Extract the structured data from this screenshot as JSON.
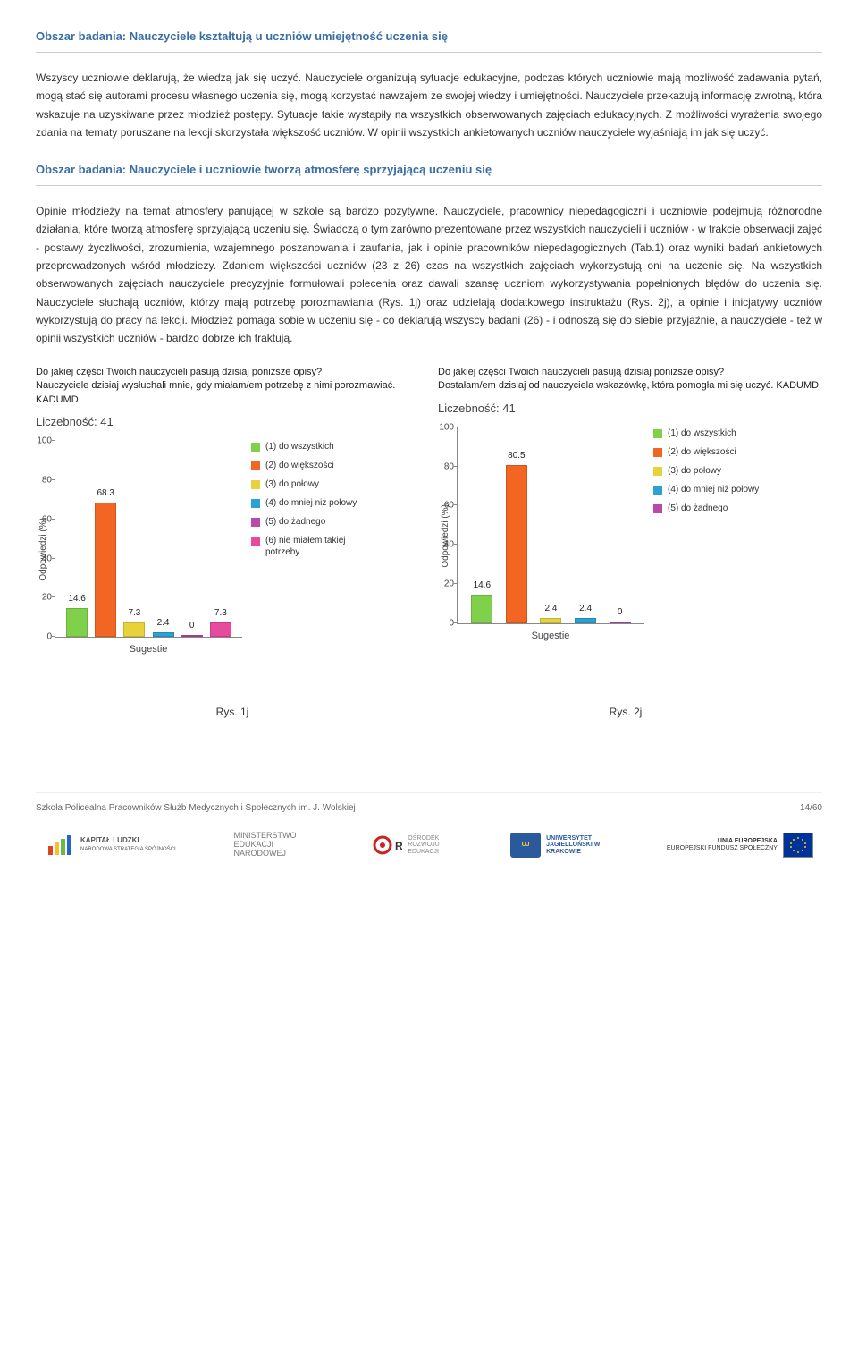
{
  "section1": {
    "heading": "Obszar badania: Nauczyciele kształtują u uczniów umiejętność uczenia się",
    "para": "Wszyscy uczniowie deklarują, że wiedzą jak się uczyć. Nauczyciele organizują sytuacje edukacyjne, podczas których uczniowie mają możliwość zadawania pytań, mogą stać się autorami procesu własnego uczenia się, mogą korzystać nawzajem ze swojej wiedzy i umiejętności. Nauczyciele przekazują informację zwrotną, która wskazuje na uzyskiwane przez młodzież postępy. Sytuacje takie wystąpiły na wszystkich obserwowanych zajęciach edukacyjnych. Z możliwości wyrażenia swojego zdania na tematy poruszane na lekcji skorzystała większość uczniów. W opinii wszystkich ankietowanych uczniów nauczyciele wyjaśniają im jak się uczyć."
  },
  "section2": {
    "heading": "Obszar badania: Nauczyciele i uczniowie tworzą atmosferę sprzyjającą uczeniu się",
    "para": "Opinie młodzieży na temat atmosfery panującej w szkole są bardzo pozytywne. Nauczyciele, pracownicy niepedagogiczni i uczniowie podejmują różnorodne działania, które tworzą atmosferę sprzyjającą uczeniu się. Świadczą o tym zarówno prezentowane przez wszystkich nauczycieli i uczniów - w trakcie obserwacji zajęć - postawy życzliwości, zrozumienia, wzajemnego poszanowania i zaufania, jak i opinie pracowników niepedagogicznych (Tab.1) oraz wyniki badań ankietowych przeprowadzonych wśród młodzieży. Zdaniem większości uczniów (23 z 26) czas na wszystkich zajęciach wykorzystują oni na uczenie się. Na wszystkich obserwowanych zajęciach nauczyciele precyzyjnie formułowali polecenia oraz dawali szansę uczniom wykorzystywania popełnionych błędów do uczenia się. Nauczyciele słuchają uczniów, którzy mają potrzebę porozmawiania (Rys. 1j) oraz udzielają dodatkowego instruktażu (Rys. 2j), a opinie i inicjatywy uczniów wykorzystują do pracy na lekcji. Młodzież pomaga sobie w uczeniu się - co deklarują wszyscy badani (26) - i odnoszą się do siebie przyjaźnie, a nauczyciele - też w opinii wszystkich uczniów - bardzo dobrze ich traktują."
  },
  "chart1": {
    "question": "Do jakiej części Twoich nauczycieli pasują dzisiaj poniższe opisy?\nNauczyciele dzisiaj wysłuchali mnie, gdy miałam/em potrzebę z nimi porozmawiać. KADUMD",
    "count_label": "Liczebność: 41",
    "type": "bar",
    "y_label": "Odpowiedzi (%)",
    "x_label": "Sugestie",
    "ylim": [
      0,
      100
    ],
    "ytick_step": 20,
    "values": [
      14.6,
      68.3,
      7.3,
      2.4,
      0,
      7.3
    ],
    "bar_colors": [
      "#7fd04a",
      "#f26522",
      "#e8d23a",
      "#2aa2d6",
      "#b84aa8",
      "#e84a9e"
    ],
    "legend": [
      {
        "label": "(1) do wszystkich",
        "color": "#7fd04a"
      },
      {
        "label": "(2) do większości",
        "color": "#f26522"
      },
      {
        "label": "(3) do połowy",
        "color": "#e8d23a"
      },
      {
        "label": "(4) do mniej niż połowy",
        "color": "#2aa2d6"
      },
      {
        "label": "(5) do żadnego",
        "color": "#b84aa8"
      },
      {
        "label": "(6) nie miałem takiej potrzeby",
        "color": "#e84a9e"
      }
    ],
    "caption": "Rys. 1j"
  },
  "chart2": {
    "question": "Do jakiej części Twoich nauczycieli pasują dzisiaj poniższe opisy?\nDostałam/em dzisiaj od nauczyciela wskazówkę, która pomogła mi się uczyć. KADUMD",
    "count_label": "Liczebność: 41",
    "type": "bar",
    "y_label": "Odpowiedzi (%)",
    "x_label": "Sugestie",
    "ylim": [
      0,
      100
    ],
    "ytick_step": 20,
    "values": [
      14.6,
      80.5,
      2.4,
      2.4,
      0
    ],
    "bar_colors": [
      "#7fd04a",
      "#f26522",
      "#e8d23a",
      "#2aa2d6",
      "#b84aa8"
    ],
    "legend": [
      {
        "label": "(1) do wszystkich",
        "color": "#7fd04a"
      },
      {
        "label": "(2) do większości",
        "color": "#f26522"
      },
      {
        "label": "(3) do połowy",
        "color": "#e8d23a"
      },
      {
        "label": "(4) do mniej niż połowy",
        "color": "#2aa2d6"
      },
      {
        "label": "(5) do żadnego",
        "color": "#b84aa8"
      }
    ],
    "caption": "Rys. 2j"
  },
  "footer": {
    "left": "Szkoła Policealna Pracowników Służb Medycznych i Społecznych im. J. Wolskiej",
    "right": "14/60"
  },
  "logos": {
    "l1": "KAPITAŁ LUDZKI",
    "l1b": "NARODOWA STRATEGIA SPÓJNOŚCI",
    "l2": "MINISTERSTWO EDUKACJI NARODOWEJ",
    "l3": "ORE",
    "l3b": "OŚRODEK ROZWOJU EDUKACJI",
    "l4": "UNIWERSYTET JAGIELLOŃSKI W KRAKOWIE",
    "l5": "UNIA EUROPEJSKA",
    "l5b": "EUROPEJSKI FUNDUSZ SPOŁECZNY"
  }
}
